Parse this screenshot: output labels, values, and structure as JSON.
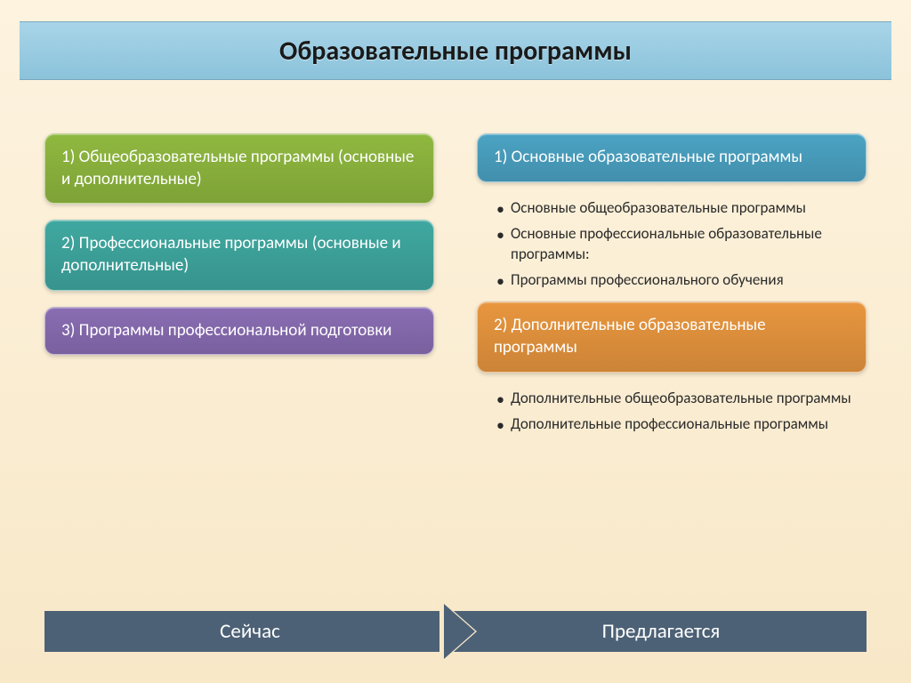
{
  "title": "Образовательные программы",
  "colors": {
    "background_top": "#fdf3df",
    "background_bottom": "#f8e8c8",
    "title_bar_top": "#a8d4e8",
    "title_bar_bottom": "#8bc3db",
    "card_green": "#8fb83f",
    "card_teal": "#3fa8a0",
    "card_purple": "#8a6db3",
    "card_blue": "#4ba3c3",
    "card_orange": "#e8963e",
    "bottom_bar": "#4d6176",
    "text_dark": "#2a2a2a",
    "text_white": "#ffffff"
  },
  "left_column": {
    "cards": [
      {
        "text": "1) Общеобразовательные программы (основные и дополнительные)",
        "color": "#8fb83f"
      },
      {
        "text": "2) Профессиональные программы (основные и дополнительные)",
        "color": "#3fa8a0"
      },
      {
        "text": "3) Программы профессиональной подготовки",
        "color": "#8a6db3"
      }
    ]
  },
  "right_column": {
    "groups": [
      {
        "card": {
          "text": "1) Основные образовательные программы",
          "color": "#4ba3c3"
        },
        "bullets": [
          "Основные общеобразовательные программы",
          "Основные профессиональные образовательные программы:",
          "Программы профессионального обучения"
        ]
      },
      {
        "card": {
          "text": "2) Дополнительные образовательные программы",
          "color": "#e8963e"
        },
        "bullets": [
          "Дополнительные общеобразовательные программы",
          "Дополнительные профессиональные программы"
        ]
      }
    ]
  },
  "bottom": {
    "left_label": "Сейчас",
    "right_label": "Предлагается"
  },
  "typography": {
    "title_fontsize": 30,
    "card_fontsize": 19,
    "bullet_fontsize": 17,
    "bottom_fontsize": 23
  }
}
